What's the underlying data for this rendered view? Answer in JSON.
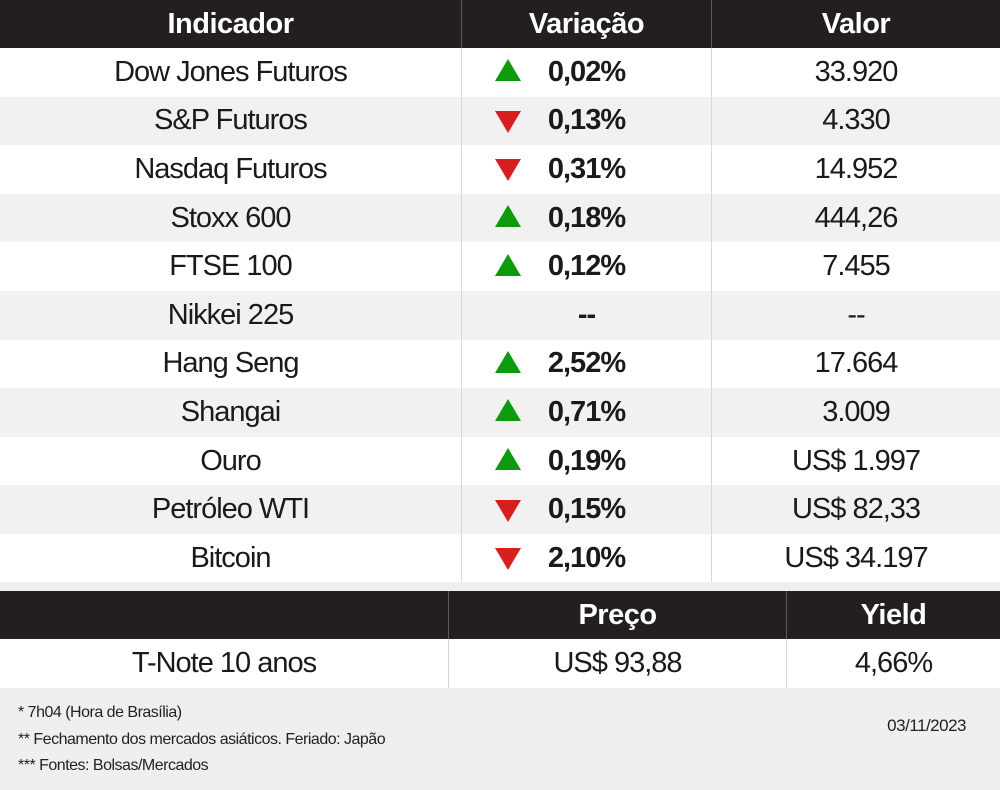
{
  "main_table": {
    "headers": [
      "Indicador",
      "Variação",
      "Valor"
    ],
    "rows": [
      {
        "indicator": "Dow Jones Futuros",
        "direction": "up",
        "change": "0,02%",
        "value": "33.920"
      },
      {
        "indicator": "S&P Futuros",
        "direction": "down",
        "change": "0,13%",
        "value": "4.330"
      },
      {
        "indicator": "Nasdaq Futuros",
        "direction": "down",
        "change": "0,31%",
        "value": "14.952"
      },
      {
        "indicator": "Stoxx 600",
        "direction": "up",
        "change": "0,18%",
        "value": "444,26"
      },
      {
        "indicator": "FTSE 100",
        "direction": "up",
        "change": "0,12%",
        "value": "7.455"
      },
      {
        "indicator": "Nikkei 225",
        "direction": "none",
        "change": "--",
        "value": "--"
      },
      {
        "indicator": "Hang Seng",
        "direction": "up",
        "change": "2,52%",
        "value": "17.664"
      },
      {
        "indicator": "Shangai",
        "direction": "up",
        "change": "0,71%",
        "value": "3.009"
      },
      {
        "indicator": "Ouro",
        "direction": "up",
        "change": "0,19%",
        "value": "US$ 1.997"
      },
      {
        "indicator": "Petróleo WTI",
        "direction": "down",
        "change": "0,15%",
        "value": "US$ 82,33"
      },
      {
        "indicator": "Bitcoin",
        "direction": "down",
        "change": "2,10%",
        "value": "US$ 34.197"
      }
    ]
  },
  "treasury_table": {
    "headers": [
      "",
      "Preço",
      "Yield"
    ],
    "row": {
      "name": "T-Note 10 anos",
      "price": "US$ 93,88",
      "yield": "4,66%"
    }
  },
  "footer": {
    "notes": [
      "* 7h04 (Hora de Brasília)",
      "** Fechamento dos mercados asiáticos. Feriado: Japão",
      "*** Fontes: Bolsas/Mercados"
    ],
    "date": "03/11/2023"
  },
  "colors": {
    "header_bg": "#231f20",
    "up_arrow": "#0d9b0d",
    "down_arrow": "#d61f1f",
    "alt_row": "#f1f1f1"
  }
}
